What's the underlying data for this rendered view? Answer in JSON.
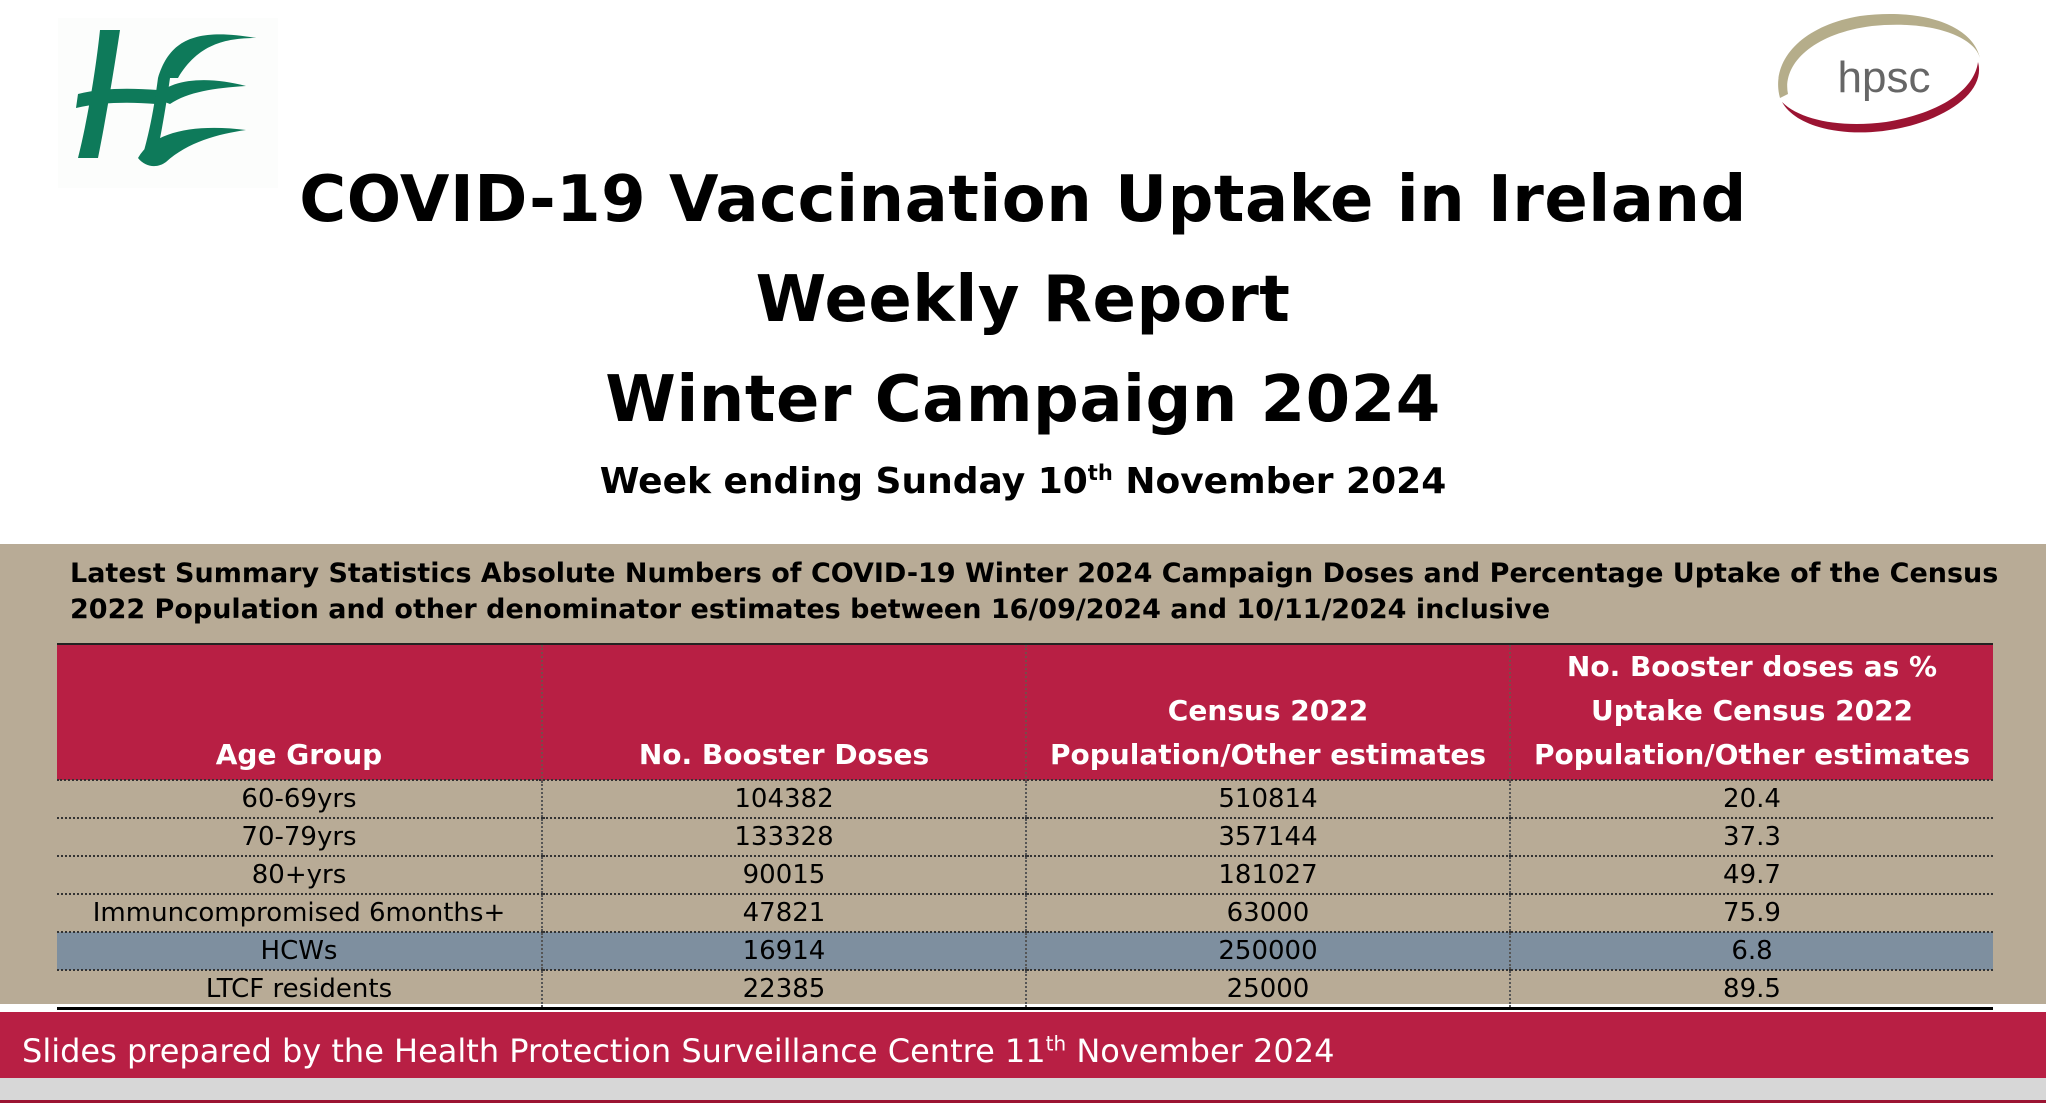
{
  "title": {
    "line1": "COVID-19 Vaccination Uptake in Ireland",
    "line2": "Weekly Report",
    "line3": "Winter Campaign 2024",
    "subtitle_before": "Week ending Sunday 10",
    "subtitle_sup": "th",
    "subtitle_after": " November 2024"
  },
  "logos": {
    "left": "HSE",
    "right": "hpsc"
  },
  "colors": {
    "brand_green": "#0e7a5a",
    "header_red": "#b81f44",
    "panel_tan": "#b8ab96",
    "highlight_row": "#7e8f9f",
    "hpsc_swoosh": "#9b1432"
  },
  "summary": {
    "heading_line1": "Latest Summary Statistics Absolute Numbers of COVID-19  Winter 2024 Campaign Doses and Percentage Uptake of the Census",
    "heading_line2": "2022 Population and other denominator estimates between 16/09/2024 and 10/11/2024 inclusive"
  },
  "table": {
    "headers": [
      "Age Group",
      "No. Booster Doses",
      "Census 2022 Population/Other estimates",
      "No. Booster doses as % Uptake Census 2022 Population/Other estimates"
    ],
    "rows": [
      [
        "60-69yrs",
        "104382",
        "510814",
        "20.4"
      ],
      [
        "70-79yrs",
        "133328",
        "357144",
        "37.3"
      ],
      [
        "80+yrs",
        "90015",
        "181027",
        "49.7"
      ],
      [
        "Immuncompromised 6months+",
        "47821",
        "63000",
        "75.9"
      ],
      [
        "HCWs",
        "16914",
        "250000",
        "6.8"
      ],
      [
        "LTCF residents",
        "22385",
        "25000",
        "89.5"
      ]
    ],
    "highlighted_row": 4
  },
  "footer": {
    "text_before": "Slides prepared by the Health Protection Surveillance Centre 11",
    "text_sup": "th",
    "text_after": " November 2024"
  }
}
